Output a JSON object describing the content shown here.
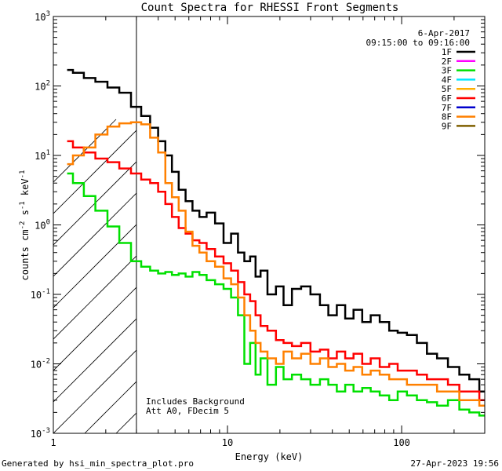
{
  "chart_data": {
    "type": "line",
    "title": "Count Spectra for RHESSI Front Segments",
    "xlabel": "Energy (keV)",
    "ylabel": "counts cm",
    "ylabel_parts": {
      "main": "counts cm",
      "exp1": "-2",
      "mid": " s",
      "exp2": "-1",
      "end": " keV",
      "exp3": "-1"
    },
    "x_scale": "log",
    "y_scale": "log",
    "xlim": [
      1,
      300
    ],
    "ylim": [
      0.001,
      1000
    ],
    "x_ticks": [
      {
        "value": 1,
        "label": "1"
      },
      {
        "value": 10,
        "label": "10"
      },
      {
        "value": 100,
        "label": "100"
      }
    ],
    "y_ticks": [
      {
        "value": 0.001,
        "base": "10",
        "exp": "-3"
      },
      {
        "value": 0.01,
        "base": "10",
        "exp": "-2"
      },
      {
        "value": 0.1,
        "base": "10",
        "exp": "-1"
      },
      {
        "value": 1,
        "base": "10",
        "exp": "0"
      },
      {
        "value": 10,
        "base": "10",
        "exp": "1"
      },
      {
        "value": 100,
        "base": "10",
        "exp": "2"
      },
      {
        "value": 1000,
        "base": "10",
        "exp": "3"
      }
    ],
    "hatch_region": {
      "x_from": 1,
      "x_to": 3
    },
    "date": "6-Apr-2017",
    "time_range": "09:15:00 to 09:16:00",
    "annotations": [
      "Includes Background",
      "Att A0, FDecim 5"
    ],
    "legend_position": "top-right",
    "series": [
      {
        "name": "1F",
        "color": "#000000",
        "x": [
          1.2,
          1.4,
          1.6,
          1.9,
          2.2,
          2.6,
          3.0,
          3.4,
          3.8,
          4.2,
          4.6,
          5.0,
          5.5,
          6.0,
          6.6,
          7.2,
          8.0,
          9.0,
          10.0,
          11.0,
          12.0,
          13.0,
          14.0,
          15.0,
          16.0,
          18.0,
          20.0,
          22.0,
          25.0,
          28.0,
          32.0,
          36.0,
          40.0,
          45.0,
          50.0,
          56.0,
          63.0,
          70.0,
          80.0,
          90.0,
          100.0,
          115.0,
          130.0,
          150.0,
          170.0,
          200.0,
          230.0,
          260.0,
          300.0
        ],
        "values": [
          170,
          155,
          130,
          115,
          95,
          80,
          50,
          37,
          25,
          16,
          10,
          5.8,
          3.2,
          2.2,
          1.6,
          1.3,
          1.5,
          1.05,
          0.55,
          0.75,
          0.4,
          0.3,
          0.35,
          0.18,
          0.22,
          0.1,
          0.13,
          0.07,
          0.12,
          0.13,
          0.1,
          0.07,
          0.05,
          0.07,
          0.045,
          0.06,
          0.04,
          0.05,
          0.04,
          0.03,
          0.028,
          0.026,
          0.02,
          0.014,
          0.012,
          0.009,
          0.007,
          0.006,
          0.004
        ]
      },
      {
        "name": "2F",
        "color": "#ff00ff",
        "x": [],
        "values": []
      },
      {
        "name": "3F",
        "color": "#00e000",
        "x": [
          1.2,
          1.4,
          1.6,
          1.9,
          2.2,
          2.6,
          3.0,
          3.4,
          3.8,
          4.2,
          4.6,
          5.0,
          5.5,
          6.0,
          6.6,
          7.2,
          8.0,
          9.0,
          10.0,
          11.0,
          12.0,
          13.0,
          14.0,
          15.0,
          16.0,
          18.0,
          20.0,
          22.0,
          25.0,
          28.0,
          32.0,
          36.0,
          40.0,
          45.0,
          50.0,
          56.0,
          63.0,
          70.0,
          80.0,
          90.0,
          100.0,
          115.0,
          130.0,
          150.0,
          170.0,
          200.0,
          230.0,
          260.0,
          300.0
        ],
        "values": [
          5.5,
          4.0,
          2.6,
          1.6,
          0.95,
          0.55,
          0.3,
          0.25,
          0.22,
          0.2,
          0.21,
          0.19,
          0.2,
          0.18,
          0.21,
          0.19,
          0.16,
          0.14,
          0.12,
          0.09,
          0.05,
          0.01,
          0.02,
          0.007,
          0.012,
          0.005,
          0.009,
          0.006,
          0.007,
          0.006,
          0.005,
          0.006,
          0.005,
          0.004,
          0.005,
          0.004,
          0.0045,
          0.004,
          0.0035,
          0.003,
          0.004,
          0.0035,
          0.003,
          0.0028,
          0.0025,
          0.003,
          0.0022,
          0.002,
          0.0018
        ]
      },
      {
        "name": "4F",
        "color": "#00e6ff",
        "x": [],
        "values": []
      },
      {
        "name": "5F",
        "color": "#ffb000",
        "x": [],
        "values": []
      },
      {
        "name": "6F",
        "color": "#ff0000",
        "x": [
          1.2,
          1.4,
          1.6,
          1.9,
          2.2,
          2.6,
          3.0,
          3.4,
          3.8,
          4.2,
          4.6,
          5.0,
          5.5,
          6.0,
          6.6,
          7.2,
          8.0,
          9.0,
          10.0,
          11.0,
          12.0,
          13.0,
          14.0,
          15.0,
          16.0,
          18.0,
          20.0,
          22.0,
          25.0,
          28.0,
          32.0,
          36.0,
          40.0,
          45.0,
          50.0,
          56.0,
          63.0,
          70.0,
          80.0,
          90.0,
          100.0,
          115.0,
          130.0,
          150.0,
          170.0,
          200.0,
          230.0,
          260.0,
          300.0
        ],
        "values": [
          16,
          13,
          11,
          9,
          8,
          6.5,
          5.5,
          4.5,
          4.0,
          3.0,
          2.0,
          1.3,
          0.9,
          0.75,
          0.6,
          0.55,
          0.45,
          0.35,
          0.28,
          0.22,
          0.15,
          0.1,
          0.08,
          0.05,
          0.035,
          0.03,
          0.022,
          0.02,
          0.018,
          0.02,
          0.015,
          0.016,
          0.012,
          0.015,
          0.012,
          0.014,
          0.01,
          0.012,
          0.009,
          0.01,
          0.008,
          0.008,
          0.007,
          0.006,
          0.006,
          0.005,
          0.004,
          0.004,
          0.003
        ]
      },
      {
        "name": "7F",
        "color": "#0000cc",
        "x": [],
        "values": []
      },
      {
        "name": "8F",
        "color": "#ff8000",
        "x": [
          1.2,
          1.4,
          1.6,
          1.9,
          2.2,
          2.6,
          3.0,
          3.4,
          3.8,
          4.2,
          4.6,
          5.0,
          5.5,
          6.0,
          6.6,
          7.2,
          8.0,
          9.0,
          10.0,
          11.0,
          12.0,
          13.0,
          14.0,
          15.0,
          16.0,
          18.0,
          20.0,
          22.0,
          25.0,
          28.0,
          32.0,
          36.0,
          40.0,
          45.0,
          50.0,
          56.0,
          63.0,
          70.0,
          80.0,
          90.0,
          100.0,
          115.0,
          130.0,
          150.0,
          170.0,
          200.0,
          230.0,
          260.0,
          300.0
        ],
        "values": [
          7.5,
          10,
          13,
          20,
          26,
          29,
          30,
          28,
          18,
          11,
          4,
          2.5,
          1.6,
          0.8,
          0.5,
          0.4,
          0.3,
          0.25,
          0.17,
          0.14,
          0.09,
          0.05,
          0.03,
          0.02,
          0.015,
          0.012,
          0.01,
          0.015,
          0.012,
          0.014,
          0.01,
          0.012,
          0.009,
          0.01,
          0.008,
          0.009,
          0.007,
          0.008,
          0.007,
          0.006,
          0.006,
          0.005,
          0.005,
          0.005,
          0.004,
          0.004,
          0.003,
          0.003,
          0.0025
        ]
      },
      {
        "name": "9F",
        "color": "#7f5f00",
        "x": [],
        "values": []
      }
    ]
  },
  "footer": {
    "generated_by": "Generated by hsi_min_spectra_plot.pro",
    "timestamp": "27-Apr-2023 19:56"
  }
}
